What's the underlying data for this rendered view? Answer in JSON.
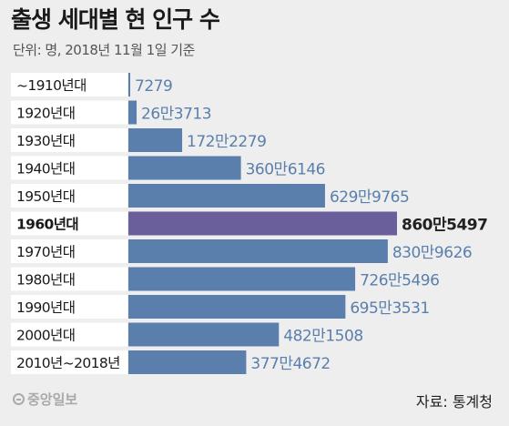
{
  "title": "출생 세대별 현 인구 수",
  "subtitle": "단위: 명, 2018년 11월 1일 기준",
  "footer": {
    "logo_text": "중앙일보",
    "source": "자료: 통계청"
  },
  "colors": {
    "bar": "#5a7fad",
    "highlight_bar": "#6a5f9a",
    "label_bg": "#ffffff",
    "value_text": "#5a7fad",
    "highlight_value_text": "#222222",
    "background": "#eeeeee"
  },
  "chart_data": {
    "type": "bar",
    "orientation": "horizontal",
    "categories": [
      "~1910년대",
      "1920년대",
      "1930년대",
      "1940년대",
      "1950년대",
      "1960년대",
      "1970년대",
      "1980년대",
      "1990년대",
      "2000년대",
      "2010년~2018년"
    ],
    "values": [
      7279,
      263713,
      1722279,
      3606146,
      6299765,
      8605497,
      8309626,
      7265496,
      6953531,
      4821508,
      3774672
    ],
    "value_labels": [
      "7279",
      "26만3713",
      "172만2279",
      "360만6146",
      "629만9765",
      "860만5497",
      "830만9626",
      "726만5496",
      "695만3531",
      "482만1508",
      "377만4672"
    ],
    "highlight_index": 5,
    "xlim": [
      0,
      8605497
    ],
    "grid": false
  }
}
